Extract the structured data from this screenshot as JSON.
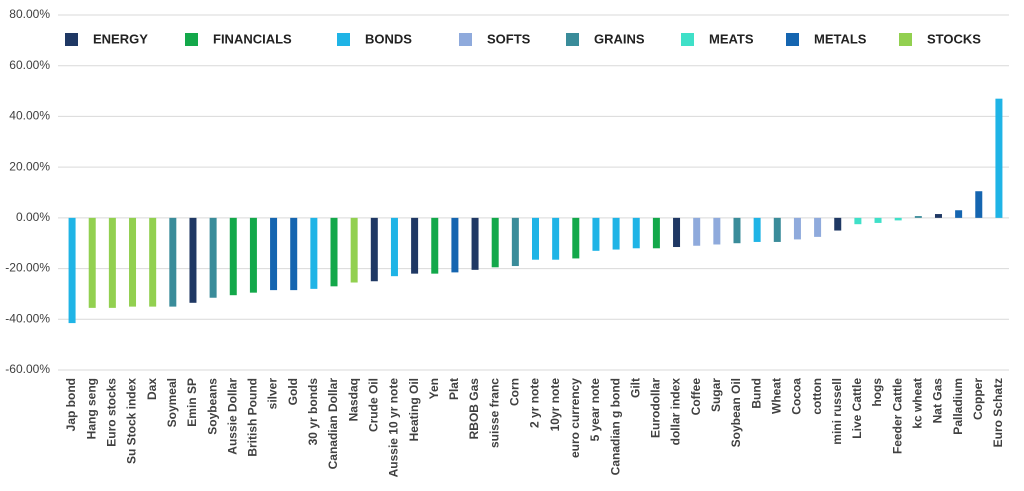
{
  "chart_data": {
    "type": "bar",
    "categories": [
      "Jap bond",
      "Hang seng",
      "Euro stocks",
      "Su Stock index",
      "Dax",
      "Soymeal",
      "Emin SP",
      "Soybeans",
      "Aussie Dollar",
      "British Pound",
      "silver",
      "Gold",
      "30 yr bonds",
      "Canadian Dollar",
      "Nasdaq",
      "Crude Oil",
      "Aussie 10 yr note",
      "Heating Oil",
      "Yen",
      "Plat",
      "RBOB Gas",
      "suisse franc",
      "Corn",
      "2 yr note",
      "10yr note",
      "euro currency",
      "5 year note",
      "Canadian g bond",
      "Gilt",
      "Eurodollar",
      "dollar index",
      "Coffee",
      "Sugar",
      "Soybean Oil",
      "Bund",
      "Wheat",
      "Cocoa",
      "cotton",
      "mini russell",
      "Live Cattle",
      "hogs",
      "Feeder Cattle",
      "kc wheat",
      "Nat Gas",
      "Palladium",
      "Copper",
      "Euro Schatz"
    ],
    "series": [
      {
        "name": "ENERGY",
        "color": "#1f3864",
        "values": [
          null,
          null,
          null,
          null,
          null,
          null,
          -33.5,
          null,
          null,
          null,
          null,
          null,
          null,
          null,
          null,
          -25,
          null,
          -22,
          null,
          null,
          -20.5,
          null,
          null,
          null,
          null,
          null,
          null,
          null,
          null,
          null,
          -11.5,
          null,
          null,
          null,
          null,
          null,
          null,
          null,
          -5,
          null,
          null,
          null,
          null,
          1.5,
          null,
          null,
          null
        ]
      },
      {
        "name": "FINANCIALS",
        "color": "#13a84a",
        "values": [
          null,
          null,
          null,
          null,
          null,
          null,
          null,
          null,
          -30.5,
          -29.5,
          null,
          null,
          null,
          -27,
          null,
          null,
          null,
          null,
          -22,
          null,
          null,
          -19.5,
          null,
          null,
          null,
          -16,
          null,
          null,
          null,
          -12,
          null,
          null,
          null,
          null,
          null,
          null,
          null,
          null,
          null,
          null,
          null,
          null,
          null,
          null,
          null,
          null,
          null
        ]
      },
      {
        "name": "BONDS",
        "color": "#1fb4e6",
        "values": [
          -41.5,
          null,
          null,
          null,
          null,
          null,
          null,
          null,
          null,
          null,
          null,
          null,
          -28,
          null,
          null,
          null,
          -23,
          null,
          null,
          null,
          null,
          null,
          null,
          -16.5,
          -16.5,
          null,
          -13,
          -12.5,
          -12,
          null,
          null,
          null,
          null,
          null,
          -9.5,
          null,
          null,
          null,
          null,
          null,
          null,
          null,
          null,
          null,
          null,
          null,
          47
        ]
      },
      {
        "name": "SOFTS",
        "color": "#8faadc",
        "values": [
          null,
          null,
          null,
          null,
          null,
          null,
          null,
          null,
          null,
          null,
          null,
          null,
          null,
          null,
          null,
          null,
          null,
          null,
          null,
          null,
          null,
          null,
          null,
          null,
          null,
          null,
          null,
          null,
          null,
          null,
          null,
          -11,
          -10.5,
          null,
          null,
          null,
          -8.5,
          -7.5,
          null,
          null,
          null,
          null,
          null,
          null,
          null,
          null,
          null
        ]
      },
      {
        "name": "GRAINS",
        "color": "#3a8c9a",
        "values": [
          null,
          null,
          null,
          null,
          null,
          -35,
          null,
          -31.5,
          null,
          null,
          null,
          null,
          null,
          null,
          null,
          null,
          null,
          null,
          null,
          null,
          null,
          null,
          -19,
          null,
          null,
          null,
          null,
          null,
          null,
          null,
          null,
          null,
          null,
          -10,
          null,
          -9.5,
          null,
          null,
          null,
          null,
          null,
          null,
          0.7,
          null,
          null,
          null,
          null
        ]
      },
      {
        "name": "MEATS",
        "color": "#3fe0c8",
        "values": [
          null,
          null,
          null,
          null,
          null,
          null,
          null,
          null,
          null,
          null,
          null,
          null,
          null,
          null,
          null,
          null,
          null,
          null,
          null,
          null,
          null,
          null,
          null,
          null,
          null,
          null,
          null,
          null,
          null,
          null,
          null,
          null,
          null,
          null,
          null,
          null,
          null,
          null,
          null,
          -2.5,
          -2,
          -1,
          null,
          null,
          null,
          null,
          null
        ]
      },
      {
        "name": "METALS",
        "color": "#1565b0",
        "values": [
          null,
          null,
          null,
          null,
          null,
          null,
          null,
          null,
          null,
          null,
          -28.5,
          -28.5,
          null,
          null,
          null,
          null,
          null,
          null,
          null,
          -21.5,
          null,
          null,
          null,
          null,
          null,
          null,
          null,
          null,
          null,
          null,
          null,
          null,
          null,
          null,
          null,
          null,
          null,
          null,
          null,
          null,
          null,
          null,
          null,
          null,
          3,
          10.5,
          null
        ]
      },
      {
        "name": "STOCKS",
        "color": "#92d050",
        "values": [
          null,
          -35.5,
          -35.5,
          -35,
          -35,
          null,
          null,
          null,
          null,
          null,
          null,
          null,
          null,
          null,
          -25.5,
          null,
          null,
          null,
          null,
          null,
          null,
          null,
          null,
          null,
          null,
          null,
          null,
          null,
          null,
          null,
          null,
          null,
          null,
          null,
          null,
          null,
          null,
          null,
          null,
          null,
          null,
          null,
          null,
          null,
          null,
          null,
          null
        ]
      }
    ],
    "ylim": [
      -60,
      80
    ],
    "yticks": [
      {
        "value": -60,
        "label": "-60.00%"
      },
      {
        "value": -40,
        "label": "-40.00%"
      },
      {
        "value": -20,
        "label": "-20.00%"
      },
      {
        "value": 0,
        "label": "0.00%"
      },
      {
        "value": 20,
        "label": "20.00%"
      },
      {
        "value": 40,
        "label": "40.00%"
      },
      {
        "value": 60,
        "label": "60.00%"
      },
      {
        "value": 80,
        "label": "80.00%"
      }
    ],
    "grid": true
  }
}
